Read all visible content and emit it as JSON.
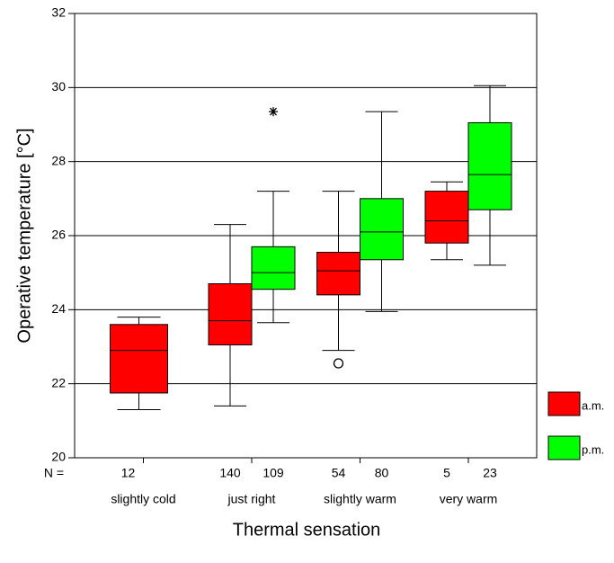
{
  "chart_data": {
    "type": "box",
    "y_label": "Operative temperature [°C]",
    "x_label": "Thermal sensation",
    "n_label": "N =",
    "categories": [
      "slightly cold",
      "just right",
      "slightly warm",
      "very warm"
    ],
    "ylim": [
      20,
      32
    ],
    "yticks": [
      20,
      22,
      24,
      26,
      28,
      30,
      32
    ],
    "grid": true,
    "series": [
      {
        "name": "a.m.",
        "color": "#ff0000",
        "whisker_low": [
          21.3,
          21.4,
          22.9,
          25.35
        ],
        "q1": [
          21.75,
          23.05,
          24.4,
          25.8
        ],
        "median": [
          22.9,
          23.7,
          25.05,
          26.4
        ],
        "q3": [
          23.6,
          24.7,
          25.55,
          27.2
        ],
        "whisker_high": [
          23.8,
          26.3,
          27.2,
          27.45
        ],
        "outliers": [
          null,
          null,
          22.55,
          null
        ],
        "n": [
          12,
          140,
          54,
          5
        ]
      },
      {
        "name": "p.m.",
        "color": "#00ff00",
        "whisker_low": [
          null,
          23.65,
          23.95,
          25.2
        ],
        "q1": [
          null,
          24.55,
          25.35,
          26.7
        ],
        "median": [
          null,
          25.0,
          26.1,
          27.65
        ],
        "q3": [
          null,
          25.7,
          27.0,
          29.05
        ],
        "whisker_high": [
          null,
          27.2,
          29.35,
          30.05
        ],
        "extremes": [
          null,
          29.35,
          null,
          null
        ],
        "n": [
          null,
          109,
          80,
          23
        ]
      }
    ]
  }
}
